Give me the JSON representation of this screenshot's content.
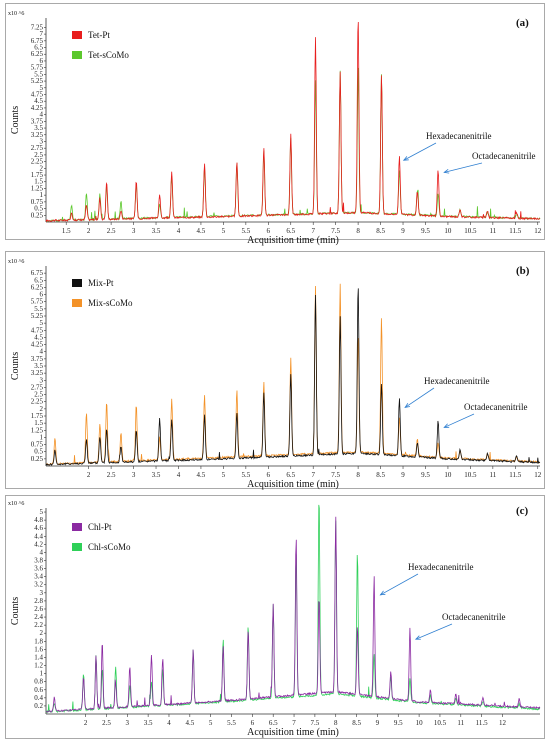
{
  "chart_data": [
    {
      "type": "line",
      "panel_label": "(a)",
      "ylabel": "Counts",
      "xlabel": "Acquisition time (min)",
      "y_multiplier": "x10 ^6",
      "xlim": [
        1.05,
        12.05
      ],
      "ylim": [
        0,
        7.6
      ],
      "x_ticks": [
        1.5,
        2,
        2.5,
        3,
        3.5,
        4,
        4.5,
        5,
        5.5,
        6,
        6.5,
        7,
        7.5,
        8,
        8.5,
        9,
        9.5,
        10,
        10.5,
        11,
        11.5,
        12
      ],
      "x_tick_labels": [
        "1.5",
        "2",
        "2.5",
        "3",
        "3.5",
        "4",
        "4.5",
        "5",
        "5.5",
        "6",
        "6.5",
        "7",
        "7.5",
        "8",
        "8.5",
        "9",
        "9.5",
        "10",
        "10.5",
        "11",
        "11.5",
        "12"
      ],
      "y_ticks": [
        0.25,
        0.5,
        0.75,
        1,
        1.25,
        1.5,
        1.75,
        2,
        2.25,
        2.5,
        2.75,
        3,
        3.25,
        3.5,
        3.75,
        4,
        4.25,
        4.5,
        4.75,
        5,
        5.25,
        5.5,
        5.75,
        6,
        6.25,
        6.5,
        6.75,
        7,
        7.25
      ],
      "y_tick_labels": [
        "0.25",
        "0.5",
        "0.75",
        "1",
        "1.25",
        "1.5",
        "1.75",
        "2",
        "2.25",
        "2.5",
        "2.75",
        "3",
        "3.25",
        "3.5",
        "3.75",
        "4",
        "4.25",
        "4.5",
        "4.75",
        "5",
        "5.25",
        "5.5",
        "5.75",
        "6",
        "6.25",
        "6.5",
        "6.75",
        "7",
        "7.25"
      ],
      "legend_position": "top-left",
      "series": [
        {
          "name": "Tet-Pt",
          "color": "#e81e1e",
          "baseline": [
            [
              1.05,
              0.05
            ],
            [
              5,
              0.2
            ],
            [
              8,
              0.35
            ],
            [
              10,
              0.2
            ],
            [
              12.05,
              0.12
            ]
          ],
          "peaks": [
            [
              1.62,
              0.25
            ],
            [
              1.95,
              0.55
            ],
            [
              2.25,
              0.8
            ],
            [
              2.4,
              1.4
            ],
            [
              2.72,
              0.3
            ],
            [
              3.06,
              1.4
            ],
            [
              3.58,
              0.9
            ],
            [
              3.85,
              1.7
            ],
            [
              4.58,
              2.0
            ],
            [
              5.3,
              2.05
            ],
            [
              5.9,
              2.5
            ],
            [
              6.5,
              3.0
            ],
            [
              7.05,
              6.6
            ],
            [
              7.6,
              5.3
            ],
            [
              8.0,
              7.35
            ],
            [
              8.52,
              5.2
            ],
            [
              8.92,
              2.2
            ],
            [
              9.32,
              0.9
            ],
            [
              9.78,
              1.75
            ],
            [
              10.27,
              0.3
            ],
            [
              10.88,
              0.25
            ],
            [
              11.53,
              0.2
            ]
          ]
        },
        {
          "name": "Tet-sCoMo",
          "color": "#5cc82d",
          "baseline": [
            [
              1.05,
              0.05
            ],
            [
              5,
              0.22
            ],
            [
              8,
              0.35
            ],
            [
              10,
              0.22
            ],
            [
              12.05,
              0.12
            ]
          ],
          "peaks": [
            [
              1.62,
              0.55
            ],
            [
              1.95,
              1.0
            ],
            [
              2.25,
              0.95
            ],
            [
              2.4,
              1.25
            ],
            [
              2.72,
              0.65
            ],
            [
              3.06,
              1.3
            ],
            [
              3.58,
              0.5
            ],
            [
              3.85,
              1.55
            ],
            [
              4.58,
              1.85
            ],
            [
              5.3,
              2.0
            ],
            [
              5.9,
              2.4
            ],
            [
              6.5,
              2.85
            ],
            [
              7.05,
              5.0
            ],
            [
              7.6,
              5.3
            ],
            [
              8.0,
              5.2
            ],
            [
              8.52,
              5.2
            ],
            [
              8.92,
              1.65
            ],
            [
              9.32,
              0.95
            ],
            [
              9.78,
              0.8
            ],
            [
              10.27,
              0.25
            ],
            [
              10.88,
              0.2
            ],
            [
              11.53,
              0.15
            ]
          ]
        }
      ],
      "annotations": [
        {
          "text": "Hexadecanenitrile",
          "x": 8.95,
          "y": 2.3
        },
        {
          "text": "Octadecanenitrile",
          "x": 9.85,
          "y": 1.85
        }
      ]
    },
    {
      "type": "line",
      "panel_label": "(b)",
      "ylabel": "Counts",
      "xlabel": "Acquisition time (min)",
      "y_multiplier": "x10 ^6",
      "xlim": [
        1.05,
        12.05
      ],
      "ylim": [
        0,
        7.0
      ],
      "x_ticks": [
        2,
        2.5,
        3,
        3.5,
        4,
        4.5,
        5,
        5.5,
        6,
        6.5,
        7,
        7.5,
        8,
        8.5,
        9,
        9.5,
        10,
        10.5,
        11,
        11.5,
        12
      ],
      "x_tick_labels": [
        "2",
        "2.5",
        "3",
        "3.5",
        "4",
        "4.5",
        "5",
        "5.5",
        "6",
        "6.5",
        "7",
        "7.5",
        "8",
        "8.5",
        "9",
        "9.5",
        "10",
        "10.5",
        "11",
        "11.5",
        "12"
      ],
      "y_ticks": [
        0.25,
        0.5,
        0.75,
        1,
        1.25,
        1.5,
        1.75,
        2,
        2.25,
        2.5,
        2.75,
        3,
        3.25,
        3.5,
        3.75,
        4,
        4.25,
        4.5,
        4.75,
        5,
        5.25,
        5.5,
        5.75,
        6,
        6.25,
        6.5,
        6.75
      ],
      "y_tick_labels": [
        "0.25",
        "0.5",
        "0.75",
        "1",
        "1.25",
        "1.5",
        "1.75",
        "2",
        "2.25",
        "2.5",
        "2.75",
        "3",
        "3.25",
        "3.5",
        "3.75",
        "4",
        "4.25",
        "4.5",
        "4.75",
        "5",
        "5.25",
        "5.5",
        "5.75",
        "6",
        "6.25",
        "6.5",
        "6.75"
      ],
      "legend_position": "top-left",
      "series": [
        {
          "name": "Mix-Pt",
          "color": "#111111",
          "baseline": [
            [
              1.05,
              0.05
            ],
            [
              5,
              0.25
            ],
            [
              8,
              0.45
            ],
            [
              10,
              0.25
            ],
            [
              12.05,
              0.12
            ]
          ],
          "peaks": [
            [
              1.25,
              0.5
            ],
            [
              1.95,
              0.85
            ],
            [
              2.25,
              0.9
            ],
            [
              2.4,
              1.2
            ],
            [
              2.72,
              0.55
            ],
            [
              3.06,
              1.1
            ],
            [
              3.58,
              1.5
            ],
            [
              3.85,
              1.45
            ],
            [
              4.58,
              1.55
            ],
            [
              5.3,
              1.6
            ],
            [
              5.9,
              2.25
            ],
            [
              6.5,
              2.9
            ],
            [
              7.05,
              5.6
            ],
            [
              7.6,
              4.8
            ],
            [
              8.0,
              5.95
            ],
            [
              8.52,
              2.5
            ],
            [
              8.92,
              2.0
            ],
            [
              9.32,
              0.5
            ],
            [
              9.78,
              1.3
            ],
            [
              10.27,
              0.35
            ],
            [
              10.88,
              0.25
            ],
            [
              11.53,
              0.2
            ]
          ]
        },
        {
          "name": "Mix-sCoMo",
          "color": "#f39228",
          "baseline": [
            [
              1.05,
              0.06
            ],
            [
              5,
              0.3
            ],
            [
              8,
              0.5
            ],
            [
              10,
              0.28
            ],
            [
              12.05,
              0.14
            ]
          ],
          "peaks": [
            [
              1.25,
              0.9
            ],
            [
              1.95,
              1.75
            ],
            [
              2.25,
              1.35
            ],
            [
              2.4,
              2.1
            ],
            [
              2.72,
              1.0
            ],
            [
              3.06,
              1.95
            ],
            [
              3.58,
              0.8
            ],
            [
              3.85,
              2.1
            ],
            [
              4.58,
              2.2
            ],
            [
              5.3,
              2.35
            ],
            [
              5.9,
              2.6
            ],
            [
              6.5,
              3.4
            ],
            [
              7.05,
              5.9
            ],
            [
              7.6,
              5.9
            ],
            [
              8.0,
              4.1
            ],
            [
              8.52,
              4.75
            ],
            [
              8.92,
              1.3
            ],
            [
              9.32,
              0.6
            ],
            [
              9.78,
              0.5
            ],
            [
              10.27,
              0.25
            ],
            [
              10.88,
              0.2
            ],
            [
              11.53,
              0.15
            ]
          ]
        }
      ],
      "annotations": [
        {
          "text": "Hexadecanenitrile",
          "x": 8.98,
          "y": 2.05
        },
        {
          "text": "Octadecanenitrile",
          "x": 9.85,
          "y": 1.35
        }
      ]
    },
    {
      "type": "line",
      "panel_label": "(c)",
      "ylabel": "Counts",
      "xlabel": "Acquisition time (min)",
      "y_multiplier": "x10 ^6",
      "xlim": [
        1.05,
        12.9
      ],
      "ylim": [
        0,
        5.1
      ],
      "x_ticks": [
        2,
        2.5,
        3,
        3.5,
        4,
        4.5,
        5,
        5.5,
        6,
        6.5,
        7,
        7.5,
        8,
        8.5,
        9,
        9.5,
        10,
        10.5,
        11,
        11.5,
        12
      ],
      "x_tick_labels": [
        "2",
        "2.5",
        "3",
        "3.5",
        "4",
        "4.5",
        "5",
        "5.5",
        "6",
        "6.5",
        "7",
        "7.5",
        "8",
        "8.5",
        "9",
        "9.5",
        "10",
        "10.5",
        "11",
        "11.5",
        "12"
      ],
      "y_ticks": [
        0.2,
        0.4,
        0.6,
        0.8,
        1,
        1.2,
        1.4,
        1.6,
        1.8,
        2,
        2.2,
        2.4,
        2.6,
        2.8,
        3,
        3.2,
        3.4,
        3.6,
        3.8,
        4,
        4.2,
        4.4,
        4.6,
        4.8,
        5
      ],
      "y_tick_labels": [
        "0.2",
        "0.4",
        "0.6",
        "0.8",
        "1",
        "1.2",
        "1.4",
        "1.6",
        "1.8",
        "2",
        "2.2",
        "2.4",
        "2.6",
        "2.8",
        "3",
        "3.2",
        "3.4",
        "3.6",
        "3.8",
        "4",
        "4.2",
        "4.4",
        "4.6",
        "4.8",
        "5"
      ],
      "legend_position": "top-left",
      "series": [
        {
          "name": "Chl-Pt",
          "color": "#8b2aa2",
          "baseline": [
            [
              1.05,
              0.06
            ],
            [
              5,
              0.3
            ],
            [
              8,
              0.55
            ],
            [
              10,
              0.3
            ],
            [
              12.9,
              0.15
            ]
          ],
          "peaks": [
            [
              1.25,
              0.35
            ],
            [
              1.95,
              0.8
            ],
            [
              2.25,
              1.3
            ],
            [
              2.4,
              1.65
            ],
            [
              2.72,
              0.6
            ],
            [
              3.06,
              1.0
            ],
            [
              3.58,
              1.25
            ],
            [
              3.85,
              1.15
            ],
            [
              4.58,
              1.3
            ],
            [
              5.3,
              1.35
            ],
            [
              5.9,
              1.7
            ],
            [
              6.5,
              2.3
            ],
            [
              7.05,
              3.95
            ],
            [
              7.6,
              2.4
            ],
            [
              8.0,
              4.35
            ],
            [
              8.52,
              1.7
            ],
            [
              8.92,
              2.9
            ],
            [
              9.32,
              0.65
            ],
            [
              9.78,
              1.8
            ],
            [
              10.27,
              0.3
            ],
            [
              10.88,
              0.25
            ],
            [
              11.53,
              0.2
            ],
            [
              12.4,
              0.2
            ]
          ]
        },
        {
          "name": "Chl-sCoMo",
          "color": "#2ed058",
          "baseline": [
            [
              1.05,
              0.05
            ],
            [
              5,
              0.28
            ],
            [
              8,
              0.5
            ],
            [
              10,
              0.28
            ],
            [
              12.9,
              0.12
            ]
          ],
          "peaks": [
            [
              1.25,
              0.2
            ],
            [
              1.95,
              0.9
            ],
            [
              2.25,
              1.35
            ],
            [
              2.4,
              1.0
            ],
            [
              2.72,
              1.05
            ],
            [
              3.06,
              0.55
            ],
            [
              3.58,
              0.6
            ],
            [
              3.85,
              0.9
            ],
            [
              4.58,
              1.35
            ],
            [
              5.3,
              1.55
            ],
            [
              5.9,
              1.85
            ],
            [
              6.5,
              2.35
            ],
            [
              7.05,
              3.6
            ],
            [
              7.6,
              5.0
            ],
            [
              8.0,
              4.3
            ],
            [
              8.52,
              3.6
            ],
            [
              8.92,
              1.1
            ],
            [
              9.32,
              0.55
            ],
            [
              9.78,
              0.6
            ],
            [
              10.27,
              0.2
            ],
            [
              10.88,
              0.15
            ],
            [
              11.53,
              0.12
            ],
            [
              12.4,
              0.1
            ]
          ]
        }
      ],
      "annotations": [
        {
          "text": "Hexadecanenitrile",
          "x": 9.0,
          "y": 2.95
        },
        {
          "text": "Octadecanenitrile",
          "x": 9.85,
          "y": 1.85
        }
      ]
    }
  ]
}
